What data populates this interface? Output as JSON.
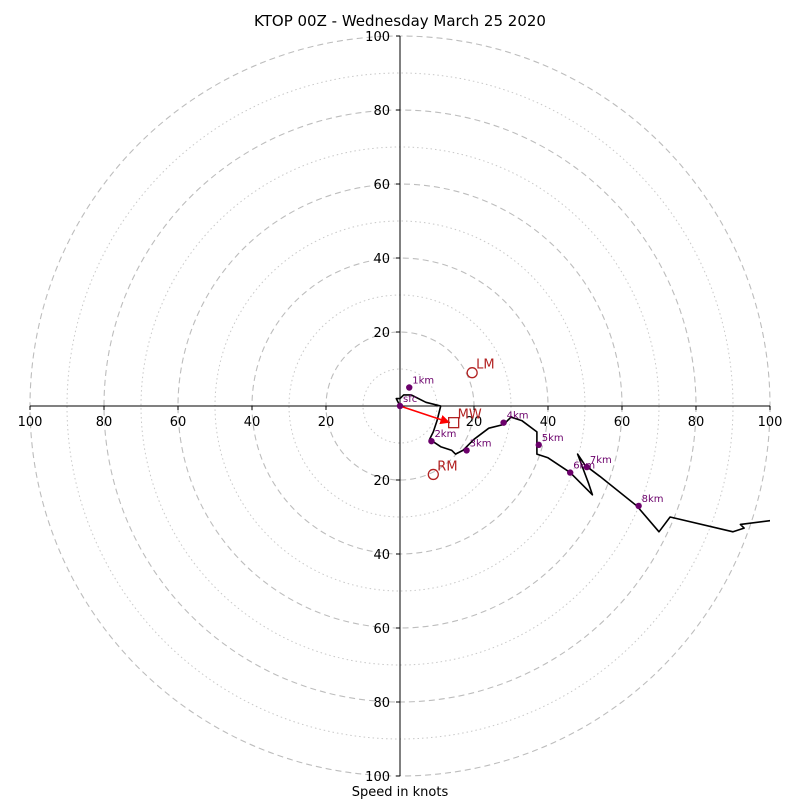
{
  "chart_data": {
    "type": "hodograph",
    "title": "KTOP 00Z - Wednesday March 25 2020",
    "xlabel": "Speed in knots",
    "range": [
      -100,
      100
    ],
    "tick_values": [
      20,
      40,
      60,
      80,
      100
    ],
    "tick_labels": [
      "20",
      "40",
      "60",
      "80",
      "100"
    ],
    "axis_label_up": [
      "100",
      "80",
      "60",
      "40",
      "20"
    ],
    "axis_label_down": [
      "20",
      "40",
      "60",
      "80",
      "100"
    ],
    "axis_label_left": [
      "100",
      "80",
      "60",
      "40",
      "20"
    ],
    "axis_label_right": [
      "20",
      "40",
      "60",
      "80",
      "100"
    ],
    "dashed_rings": [
      20,
      40,
      60,
      80,
      100
    ],
    "dotted_rings": [
      10,
      30,
      50,
      70,
      90
    ],
    "grid": true,
    "trace": {
      "color": "#000000",
      "points": [
        [
          0,
          0
        ],
        [
          -1,
          2
        ],
        [
          0,
          2
        ],
        [
          1,
          3
        ],
        [
          3,
          3
        ],
        [
          7,
          1
        ],
        [
          11,
          0
        ],
        [
          10,
          -4
        ],
        [
          9,
          -7
        ],
        [
          8,
          -9
        ],
        [
          11,
          -11
        ],
        [
          14,
          -12
        ],
        [
          15,
          -13
        ],
        [
          17,
          -12
        ],
        [
          20,
          -9
        ],
        [
          24,
          -6
        ],
        [
          28,
          -5
        ],
        [
          30,
          -3
        ],
        [
          33,
          -4
        ],
        [
          37,
          -7
        ],
        [
          37,
          -10
        ],
        [
          37,
          -13
        ],
        [
          40,
          -14
        ],
        [
          46,
          -18
        ],
        [
          49,
          -21
        ],
        [
          52,
          -24
        ],
        [
          51,
          -21
        ],
        [
          48,
          -13
        ],
        [
          50,
          -16
        ],
        [
          54,
          -19
        ],
        [
          64,
          -27
        ],
        [
          70,
          -34
        ],
        [
          73,
          -30
        ],
        [
          90,
          -34
        ],
        [
          93,
          -33
        ],
        [
          92,
          -32
        ],
        [
          100,
          -31
        ],
        [
          103,
          -30
        ]
      ]
    },
    "height_markers": {
      "color": "#6b006b",
      "points": [
        {
          "label": "sfc",
          "u": 0,
          "v": 0
        },
        {
          "label": "1km",
          "u": 2.5,
          "v": 5
        },
        {
          "label": "2km",
          "u": 8.5,
          "v": -9.5
        },
        {
          "label": "3km",
          "u": 18,
          "v": -12
        },
        {
          "label": "4km",
          "u": 28,
          "v": -4.5
        },
        {
          "label": "5km",
          "u": 37.5,
          "v": -10.5
        },
        {
          "label": "6km",
          "u": 46,
          "v": -18
        },
        {
          "label": "7km",
          "u": 50.5,
          "v": -16.5
        },
        {
          "label": "8km",
          "u": 64.5,
          "v": -27
        }
      ]
    },
    "storm_motions": {
      "color": "#b22222",
      "points": [
        {
          "label": "LM",
          "u": 19.5,
          "v": 9,
          "marker": "circle"
        },
        {
          "label": "MW",
          "u": 14.5,
          "v": -4.5,
          "marker": "square"
        },
        {
          "label": "RM",
          "u": 9,
          "v": -18.5,
          "marker": "circle"
        }
      ]
    },
    "mean_wind_arrow": {
      "color": "#ff0000",
      "from": [
        0,
        0
      ],
      "to": [
        13.5,
        -4.5
      ]
    }
  }
}
